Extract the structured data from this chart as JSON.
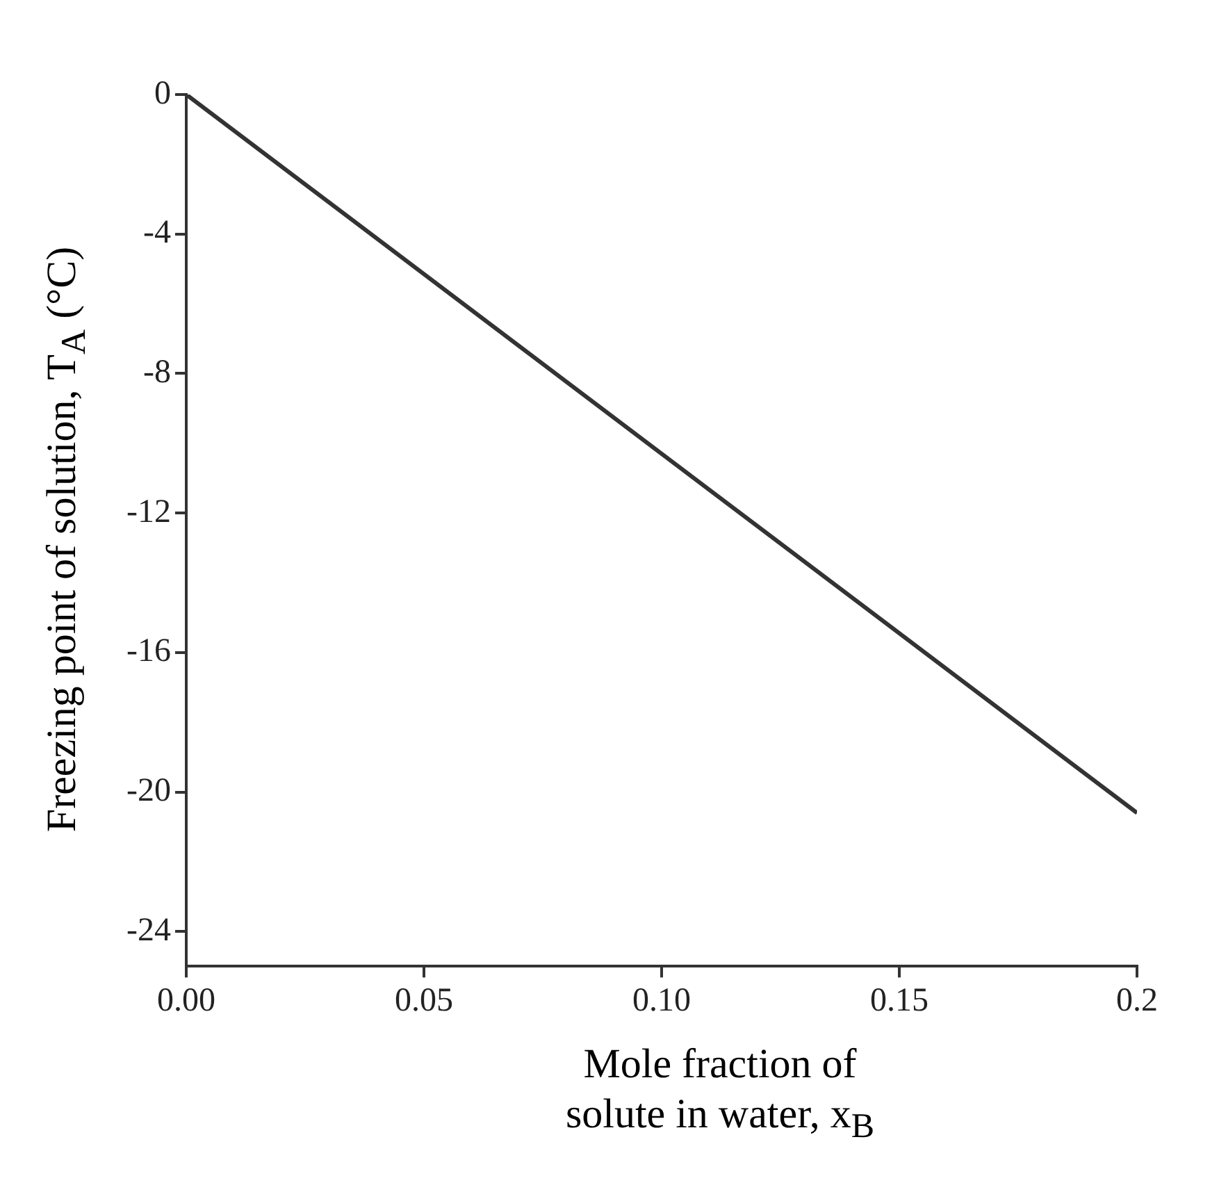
{
  "chart_data": {
    "type": "line",
    "xlabel": "Mole fraction of\nsolute in water, x$_{B}$",
    "ylabel": "Freezing point of solution, T$_{A}$ (°C)",
    "x": [
      0,
      0.2
    ],
    "series": [
      {
        "color": "#333333",
        "values": [
          0,
          -20.6
        ]
      }
    ],
    "xlim": [
      0,
      0.2
    ],
    "xticks": [
      {
        "value": 0,
        "label": "0.00"
      },
      {
        "value": 0.05,
        "label": "0.05"
      },
      {
        "value": 0.1,
        "label": "0.10"
      },
      {
        "value": 0.15,
        "label": "0.15"
      },
      0.2
    ],
    "ylim": [
      -25,
      0
    ],
    "yticks": [
      -24,
      -20,
      -16,
      -12,
      -8,
      -4,
      0
    ],
    "grid": false,
    "legend": false,
    "marker": "none",
    "line_style": "solid"
  }
}
